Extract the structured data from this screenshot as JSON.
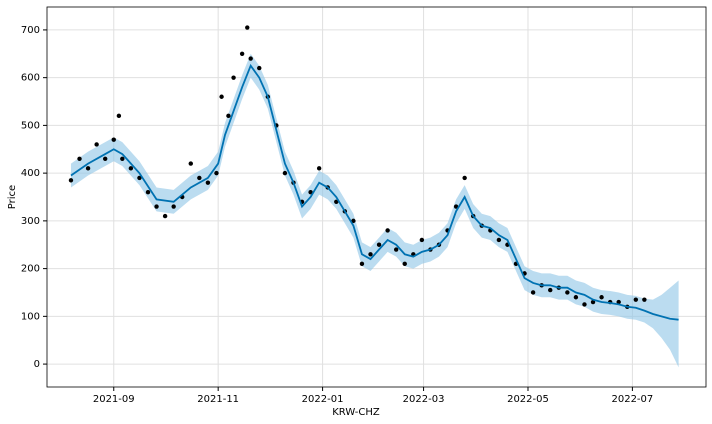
{
  "chart_data": {
    "type": "forecast",
    "x_label": "KRW-CHZ",
    "y_label": "Price",
    "xlim": [
      -39,
      346
    ],
    "ylim": [
      -48,
      748
    ],
    "xticks": [
      {
        "value": 0,
        "label": "2021-09"
      },
      {
        "value": 61,
        "label": "2021-11"
      },
      {
        "value": 122,
        "label": "2022-01"
      },
      {
        "value": 181,
        "label": "2022-03"
      },
      {
        "value": 242,
        "label": "2022-05"
      },
      {
        "value": 303,
        "label": "2022-07"
      }
    ],
    "yticks": [
      0,
      100,
      200,
      300,
      400,
      500,
      600,
      700
    ],
    "grid": true,
    "forecast": {
      "color": "#0072b2",
      "band_color": "#8ec4e6",
      "x": [
        -25,
        -15,
        -5,
        0,
        5,
        15,
        25,
        35,
        45,
        55,
        61,
        65,
        70,
        75,
        80,
        85,
        90,
        95,
        100,
        105,
        110,
        115,
        120,
        125,
        130,
        135,
        140,
        145,
        150,
        155,
        160,
        165,
        170,
        175,
        180,
        185,
        190,
        195,
        200,
        205,
        210,
        215,
        220,
        225,
        230,
        235,
        240,
        245,
        250,
        255,
        260,
        265,
        270,
        275,
        280,
        285,
        290,
        295,
        300,
        305,
        310,
        315,
        320,
        325,
        330
      ],
      "values": [
        395,
        420,
        440,
        450,
        440,
        400,
        345,
        340,
        370,
        390,
        420,
        480,
        530,
        580,
        625,
        600,
        560,
        490,
        420,
        380,
        330,
        350,
        380,
        370,
        350,
        320,
        290,
        230,
        220,
        240,
        260,
        250,
        230,
        225,
        235,
        240,
        250,
        270,
        320,
        350,
        310,
        290,
        285,
        270,
        260,
        220,
        180,
        170,
        165,
        165,
        160,
        160,
        150,
        145,
        135,
        130,
        128,
        125,
        120,
        118,
        112,
        105,
        100,
        95,
        93
      ],
      "lower": [
        370,
        395,
        415,
        425,
        415,
        375,
        320,
        315,
        345,
        365,
        395,
        455,
        505,
        555,
        600,
        575,
        535,
        465,
        395,
        355,
        305,
        325,
        355,
        345,
        325,
        295,
        265,
        205,
        195,
        215,
        235,
        225,
        205,
        200,
        210,
        215,
        225,
        245,
        295,
        325,
        285,
        265,
        260,
        245,
        235,
        195,
        155,
        145,
        140,
        140,
        135,
        135,
        125,
        120,
        110,
        105,
        103,
        100,
        95,
        93,
        87,
        75,
        55,
        30,
        -7
      ],
      "upper": [
        420,
        445,
        465,
        475,
        465,
        425,
        370,
        365,
        395,
        415,
        445,
        505,
        555,
        605,
        650,
        625,
        585,
        515,
        445,
        405,
        355,
        375,
        405,
        395,
        375,
        345,
        315,
        255,
        245,
        265,
        285,
        275,
        255,
        250,
        260,
        265,
        275,
        295,
        345,
        375,
        335,
        315,
        310,
        295,
        285,
        245,
        205,
        195,
        190,
        190,
        185,
        185,
        175,
        170,
        160,
        155,
        153,
        150,
        145,
        143,
        137,
        135,
        145,
        160,
        175
      ]
    },
    "observed": {
      "color": "#000000",
      "x": [
        -25,
        -20,
        -15,
        -10,
        -5,
        0,
        3,
        5,
        10,
        15,
        20,
        25,
        30,
        35,
        40,
        45,
        50,
        55,
        60,
        63,
        67,
        70,
        75,
        78,
        80,
        85,
        90,
        95,
        100,
        105,
        110,
        115,
        120,
        125,
        130,
        135,
        140,
        145,
        150,
        155,
        160,
        165,
        170,
        175,
        180,
        185,
        190,
        195,
        200,
        205,
        210,
        215,
        220,
        225,
        230,
        235,
        240,
        245,
        250,
        255,
        260,
        265,
        270,
        275,
        280,
        285,
        290,
        295,
        300,
        305,
        310
      ],
      "values": [
        385,
        430,
        410,
        460,
        430,
        470,
        520,
        430,
        410,
        390,
        360,
        330,
        310,
        330,
        350,
        420,
        390,
        380,
        400,
        560,
        520,
        600,
        650,
        705,
        640,
        620,
        560,
        500,
        400,
        380,
        340,
        360,
        410,
        370,
        340,
        320,
        300,
        210,
        230,
        250,
        280,
        240,
        210,
        230,
        260,
        240,
        250,
        280,
        330,
        390,
        310,
        290,
        280,
        260,
        250,
        210,
        190,
        150,
        165,
        155,
        160,
        150,
        140,
        125,
        130,
        140,
        130,
        130,
        120,
        135,
        135
      ]
    }
  }
}
